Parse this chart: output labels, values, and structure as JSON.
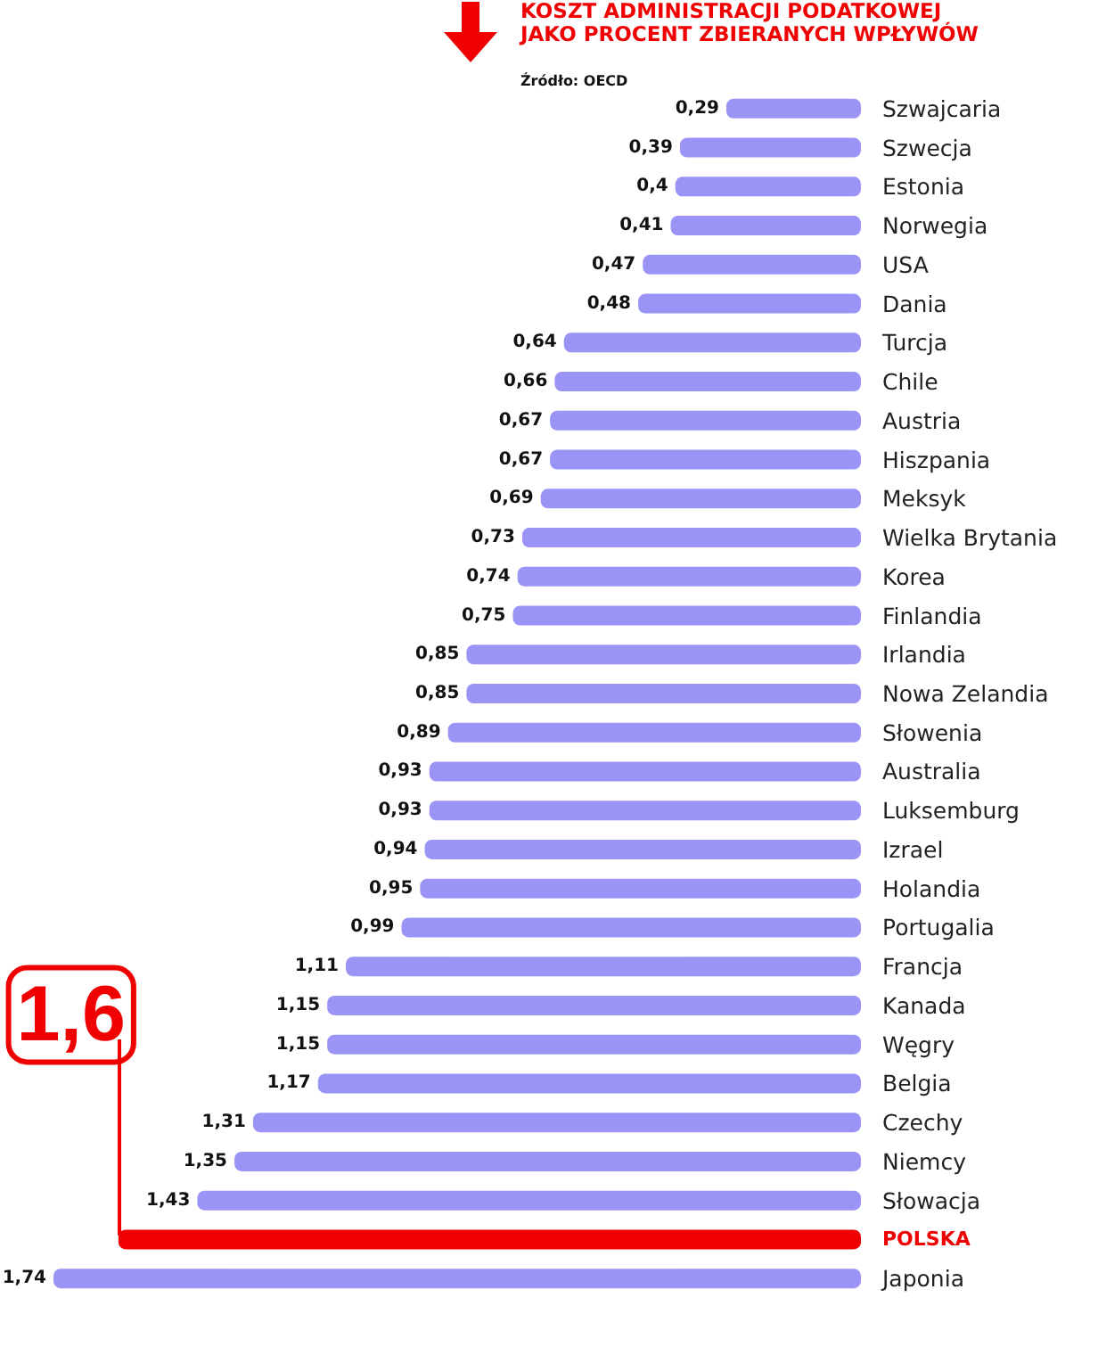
{
  "chart_data": {
    "type": "bar",
    "orientation": "horizontal",
    "title": "KOSZT ADMINISTRACJI PODATKOWEJ\nJAKO PROCENT ZBIERANYCH WPŁYWÓW",
    "annotations": [
      "Źródło: OECD"
    ],
    "categories": [
      "Szwajcaria",
      "Szwecja",
      "Estonia",
      "Norwegia",
      "USA",
      "Dania",
      "Turcja",
      "Chile",
      "Austria",
      "Hiszpania",
      "Meksyk",
      "Wielka Brytania",
      "Korea",
      "Finlandia",
      "Irlandia",
      "Nowa Zelandia",
      "Słowenia",
      "Australia",
      "Luksemburg",
      "Izrael",
      "Holandia",
      "Portugalia",
      "Francja",
      "Kanada",
      "Węgry",
      "Belgia",
      "Czechy",
      "Niemcy",
      "Słowacja",
      "POLSKA",
      "Japonia"
    ],
    "values": [
      0.29,
      0.39,
      0.4,
      0.41,
      0.47,
      0.48,
      0.64,
      0.66,
      0.67,
      0.67,
      0.69,
      0.73,
      0.74,
      0.75,
      0.85,
      0.85,
      0.89,
      0.93,
      0.93,
      0.94,
      0.95,
      0.99,
      1.11,
      1.15,
      1.15,
      1.17,
      1.31,
      1.35,
      1.43,
      1.6,
      1.74
    ],
    "value_labels": [
      "0,29",
      "0,39",
      "0,4",
      "0,41",
      "0,47",
      "0,48",
      "0,64",
      "0,66",
      "0,67",
      "0,67",
      "0,69",
      "0,73",
      "0,74",
      "0,75",
      "0,85",
      "0,85",
      "0,89",
      "0,93",
      "0,93",
      "0,94",
      "0,95",
      "0,99",
      "1,11",
      "1,15",
      "1,15",
      "1,17",
      "1,31",
      "1,35",
      "1,43",
      "1,6",
      "1,74"
    ],
    "colors": [
      "#9b94f7",
      "#9b94f7",
      "#9b94f7",
      "#9b94f7",
      "#9b94f7",
      "#9b94f7",
      "#9b94f7",
      "#9b94f7",
      "#9b94f7",
      "#9b94f7",
      "#9b94f7",
      "#9b94f7",
      "#9b94f7",
      "#9b94f7",
      "#9b94f7",
      "#9b94f7",
      "#9b94f7",
      "#9b94f7",
      "#9b94f7",
      "#9b94f7",
      "#9b94f7",
      "#9b94f7",
      "#9b94f7",
      "#9b94f7",
      "#9b94f7",
      "#9b94f7",
      "#9b94f7",
      "#9b94f7",
      "#9b94f7",
      "#f00000",
      "#9b94f7"
    ]
  }
}
